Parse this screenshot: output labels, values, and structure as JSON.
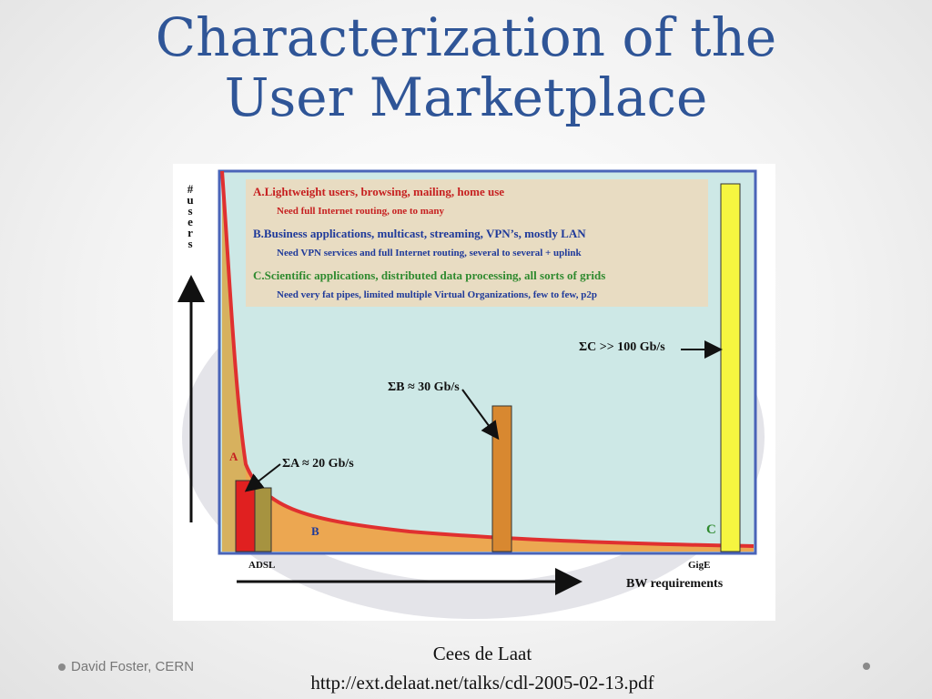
{
  "slide": {
    "title_line1": "Characterization of the",
    "title_line2": "User Marketplace"
  },
  "figure": {
    "y_axis_label": [
      "#",
      "u",
      "s",
      "e",
      "r",
      "s"
    ],
    "x_axis_label": "BW requirements",
    "legend": {
      "a_title": "A.Lightweight users, browsing, mailing, home use",
      "a_sub": "Need full Internet routing, one to many",
      "b_title": "B.Business applications, multicast, streaming, VPN’s, mostly LAN",
      "b_sub": "Need VPN services and full Internet routing, several to several + uplink",
      "c_title": "C.Scientific applications, distributed data processing, all sorts of grids",
      "c_sub": "Need very fat pipes, limited multiple Virtual Organizations, few to few, p2p"
    },
    "annotations": {
      "sum_a": "ΣA ≈ 20 Gb/s",
      "sum_b": "ΣB ≈ 30 Gb/s",
      "sum_c": "ΣC >> 100 Gb/s"
    },
    "segment_labels": {
      "a": "A",
      "b": "B",
      "c": "C"
    },
    "x_ticks": {
      "adsl": "ADSL",
      "gige": "GigE"
    },
    "colors": {
      "panel_bg": "#cde8e6",
      "curve": "#e03030",
      "area_fill": "#f0a040",
      "bar_a": "#e02020",
      "bar_b": "#d88830",
      "bar_c": "#f5f540",
      "frame": "#4a64b8",
      "title": "#2f5597"
    }
  },
  "caption": {
    "author": "Cees de Laat",
    "url": "http://ext.delaat.net/talks/cdl-2005-02-13.pdf"
  },
  "footer": {
    "left_text": "David Foster, CERN"
  }
}
